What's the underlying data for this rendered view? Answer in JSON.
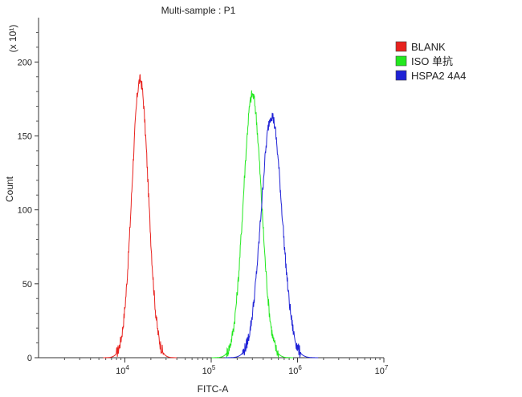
{
  "chart_data": {
    "type": "line",
    "title": "Multi-sample : P1",
    "xlabel": "FITC-A",
    "ylabel": "Count",
    "y_multiplier": "(x 10¹)",
    "x_scale": "log",
    "xlim": [
      1000,
      10000000
    ],
    "ylim": [
      0,
      230
    ],
    "y_ticks": [
      0,
      50,
      100,
      150,
      200
    ],
    "y_tick_labels": [
      "0",
      "50",
      "100",
      "150",
      "200"
    ],
    "x_ticks": [
      10000,
      100000,
      1000000,
      10000000
    ],
    "x_tick_labels": [
      {
        "base": "10",
        "exp": "4"
      },
      {
        "base": "10",
        "exp": "5"
      },
      {
        "base": "10",
        "exp": "6"
      },
      {
        "base": "10",
        "exp": "7"
      }
    ],
    "legend_position": "right",
    "grid": false,
    "series": [
      {
        "name": "BLANK",
        "color": "#e8221e",
        "center": 15000,
        "peak": 188,
        "width_decades": 0.095
      },
      {
        "name": "ISO 单抗",
        "color": "#22e81e",
        "center": 300000,
        "peak": 178,
        "width_decades": 0.105
      },
      {
        "name": "HSPA2 4A4",
        "color": "#1f22d6",
        "center": 500000,
        "peak": 164,
        "width_decades": 0.12
      }
    ]
  }
}
